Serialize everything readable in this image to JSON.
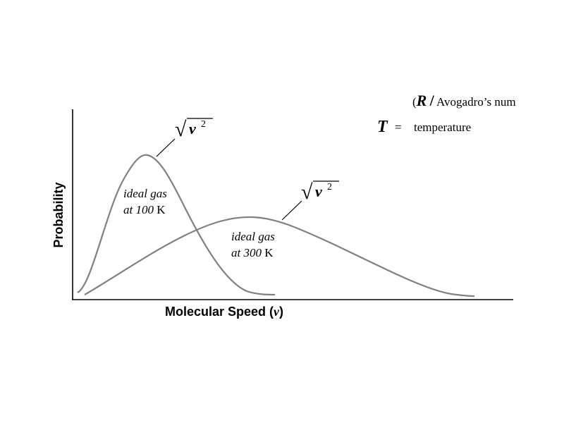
{
  "axes": {
    "y_label": "Probability",
    "x_label": {
      "text": "Molecular Speed (",
      "variable": "v",
      "close": ")"
    }
  },
  "curves": [
    {
      "label": {
        "line1": "ideal gas",
        "line2": "at 100",
        "unit": "K"
      },
      "rms": {
        "symbol": "v",
        "exponent": "2"
      }
    },
    {
      "label": {
        "line1": "ideal gas",
        "line2": "at 300",
        "unit": "K"
      },
      "rms": {
        "symbol": "v",
        "exponent": "2"
      }
    }
  ],
  "legend": {
    "r_line": {
      "open": "(",
      "symbol": "R",
      "slash": "/",
      "text": "Avogadro’s num"
    },
    "t_line": {
      "symbol": "T",
      "equals": "=",
      "text": "temperature"
    }
  }
}
